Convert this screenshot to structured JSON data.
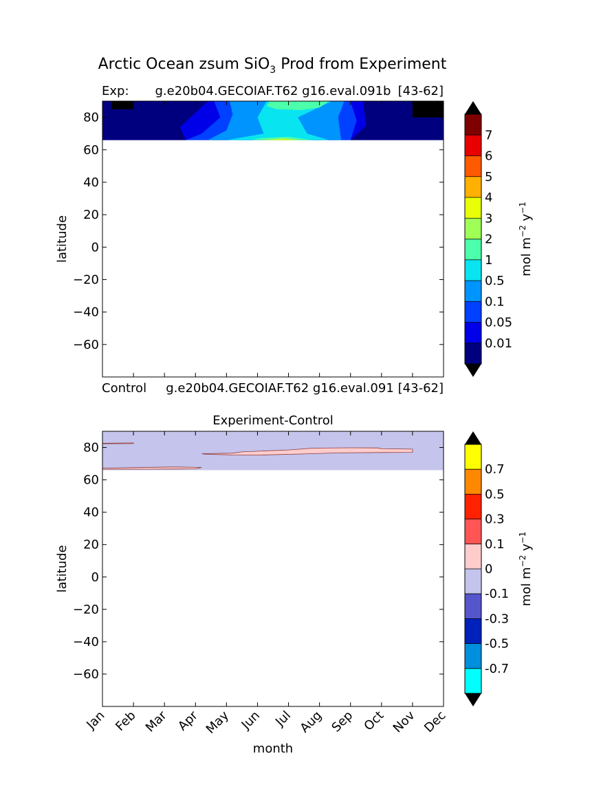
{
  "figure": {
    "title_prefix": "Arctic Ocean zsum SiO",
    "title_subscript": "3",
    "title_suffix": " Prod from Experiment"
  },
  "chart_data": [
    {
      "type": "heatmap",
      "name": "experiment",
      "left_label": "Exp:",
      "center_label": "g.e20b04.GECOIAF.T62 g16.eval.091b",
      "right_label": "[43-62]",
      "below_left": "Control",
      "below_center": "g.e20b04.GECOIAF.T62 g16.eval.091",
      "below_right": "[43-62]",
      "ylabel": "latitude",
      "yticks": [
        80,
        60,
        40,
        20,
        0,
        -20,
        -40,
        -60
      ],
      "ylim": [
        -80,
        90
      ],
      "xlim": [
        0,
        11
      ],
      "data_lat_min": 66,
      "colorbar": {
        "label": "mol m",
        "label_exp1": "−2",
        "label_mid": " y",
        "label_exp2": "−1",
        "levels": [
          "0.01",
          "0.05",
          "0.1",
          "0.5",
          "1",
          "2",
          "3",
          "4",
          "5",
          "6",
          "7"
        ],
        "colors": [
          "#00007f",
          "#0000e8",
          "#0040ff",
          "#0094ff",
          "#08e4f0",
          "#4cffaa",
          "#a0ff56",
          "#e8ff08",
          "#ffb000",
          "#ff5a00",
          "#e80000",
          "#7f0000"
        ],
        "under_color": "#000000",
        "over_color": "#000000"
      },
      "regions": [
        {
          "color": 1,
          "points": [
            [
              0,
              66
            ],
            [
              11,
              66
            ],
            [
              11,
              90
            ],
            [
              0,
              90
            ]
          ]
        },
        {
          "color": 0,
          "points": [
            [
              0,
              66
            ],
            [
              2.7,
              66
            ],
            [
              2.5,
              74
            ],
            [
              3.4,
              90
            ],
            [
              0,
              90
            ]
          ]
        },
        {
          "color": 0,
          "points": [
            [
              11,
              66
            ],
            [
              8.0,
              66
            ],
            [
              8.5,
              75
            ],
            [
              8.4,
              90
            ],
            [
              11,
              90
            ]
          ]
        },
        {
          "color": 2,
          "points": [
            [
              2.7,
              66
            ],
            [
              8.0,
              66
            ],
            [
              8.2,
              78
            ],
            [
              8.0,
              90
            ],
            [
              3.6,
              90
            ],
            [
              3.8,
              80
            ],
            [
              3.2,
              70
            ]
          ]
        },
        {
          "color": 3,
          "points": [
            [
              3.4,
              66
            ],
            [
              7.7,
              66
            ],
            [
              7.6,
              80
            ],
            [
              7.8,
              90
            ],
            [
              4.1,
              90
            ],
            [
              4.2,
              82
            ],
            [
              4.0,
              72
            ]
          ]
        },
        {
          "color": 4,
          "points": [
            [
              4.0,
              66
            ],
            [
              7.3,
              66
            ],
            [
              6.6,
              70
            ],
            [
              6.3,
              80
            ],
            [
              7.4,
              90
            ],
            [
              5.3,
              90
            ],
            [
              5.0,
              80
            ],
            [
              5.2,
              70
            ]
          ]
        },
        {
          "color": 5,
          "points": [
            [
              4.8,
              66
            ],
            [
              6.8,
              66
            ],
            [
              6.0,
              68
            ],
            [
              5.1,
              67.2
            ]
          ]
        },
        {
          "color": 6,
          "points": [
            [
              5.1,
              66
            ],
            [
              6.5,
              66
            ],
            [
              5.8,
              67.1
            ]
          ]
        },
        {
          "color": 7,
          "points": [
            [
              5.3,
              66
            ],
            [
              6.3,
              66
            ],
            [
              5.8,
              66.6
            ]
          ]
        },
        {
          "color": 5,
          "points": [
            [
              5.6,
              85
            ],
            [
              6.4,
              84.5
            ],
            [
              7.0,
              86
            ],
            [
              7.3,
              90
            ],
            [
              5.4,
              90
            ],
            [
              5.3,
              87
            ]
          ]
        },
        {
          "color": -1,
          "points": [
            [
              0.3,
              85
            ],
            [
              1.0,
              85
            ],
            [
              1.0,
              90
            ],
            [
              0.3,
              90
            ]
          ]
        },
        {
          "color": -1,
          "points": [
            [
              10.0,
              80
            ],
            [
              11,
              80
            ],
            [
              11,
              90
            ],
            [
              10.0,
              90
            ]
          ]
        }
      ]
    },
    {
      "type": "heatmap",
      "name": "difference",
      "title": "Experiment-Control",
      "ylabel": "latitude",
      "xlabel": "month",
      "yticks": [
        80,
        60,
        40,
        20,
        0,
        -20,
        -40,
        -60
      ],
      "xticks": [
        "Jan",
        "Feb",
        "Mar",
        "Apr",
        "May",
        "Jun",
        "Jul",
        "Aug",
        "Sep",
        "Oct",
        "Nov",
        "Dec"
      ],
      "ylim": [
        -80,
        90
      ],
      "xlim": [
        0,
        11
      ],
      "data_lat_min": 66,
      "colorbar": {
        "label": "mol m",
        "label_exp1": "−2",
        "label_mid": " y",
        "label_exp2": "−1",
        "levels": [
          "-0.7",
          "-0.5",
          "-0.3",
          "-0.1",
          "0",
          "0.1",
          "0.3",
          "0.5",
          "0.7"
        ],
        "colors": [
          "#00ffff",
          "#008fdd",
          "#0022bb",
          "#5555cc",
          "#c4c4ec",
          "#ffcccc",
          "#ff5555",
          "#ff2200",
          "#ff8800",
          "#ffff00"
        ],
        "under_color": "#000000",
        "over_color": "#000000"
      },
      "regions": [
        {
          "color": 4,
          "points": [
            [
              0,
              66
            ],
            [
              11,
              66
            ],
            [
              11,
              90
            ],
            [
              0,
              90
            ]
          ]
        },
        {
          "color": 5,
          "points": [
            [
              0,
              67.2
            ],
            [
              1.2,
              67.6
            ],
            [
              2.3,
              68
            ],
            [
              3.2,
              67.7
            ],
            [
              3.0,
              66.8
            ],
            [
              1.5,
              66.6
            ],
            [
              0,
              66.6
            ]
          ]
        },
        {
          "color": 5,
          "points": [
            [
              0,
              82.6
            ],
            [
              1.0,
              82.8
            ],
            [
              1.0,
              82.4
            ],
            [
              0,
              82.3
            ]
          ]
        },
        {
          "color": 5,
          "points": [
            [
              3.2,
              76.2
            ],
            [
              4.2,
              76.5
            ],
            [
              4.5,
              77.3
            ],
            [
              6.0,
              78.5
            ],
            [
              6.8,
              79.6
            ],
            [
              8.0,
              79.8
            ],
            [
              8.9,
              79.7
            ],
            [
              9.0,
              79.2
            ],
            [
              10.0,
              79.0
            ],
            [
              10.0,
              77.0
            ],
            [
              9.0,
              76.9
            ],
            [
              7.5,
              76.6
            ],
            [
              6.5,
              76.0
            ],
            [
              5.0,
              75.3
            ],
            [
              4.2,
              75.4
            ],
            [
              3.3,
              75.9
            ]
          ]
        }
      ]
    }
  ]
}
